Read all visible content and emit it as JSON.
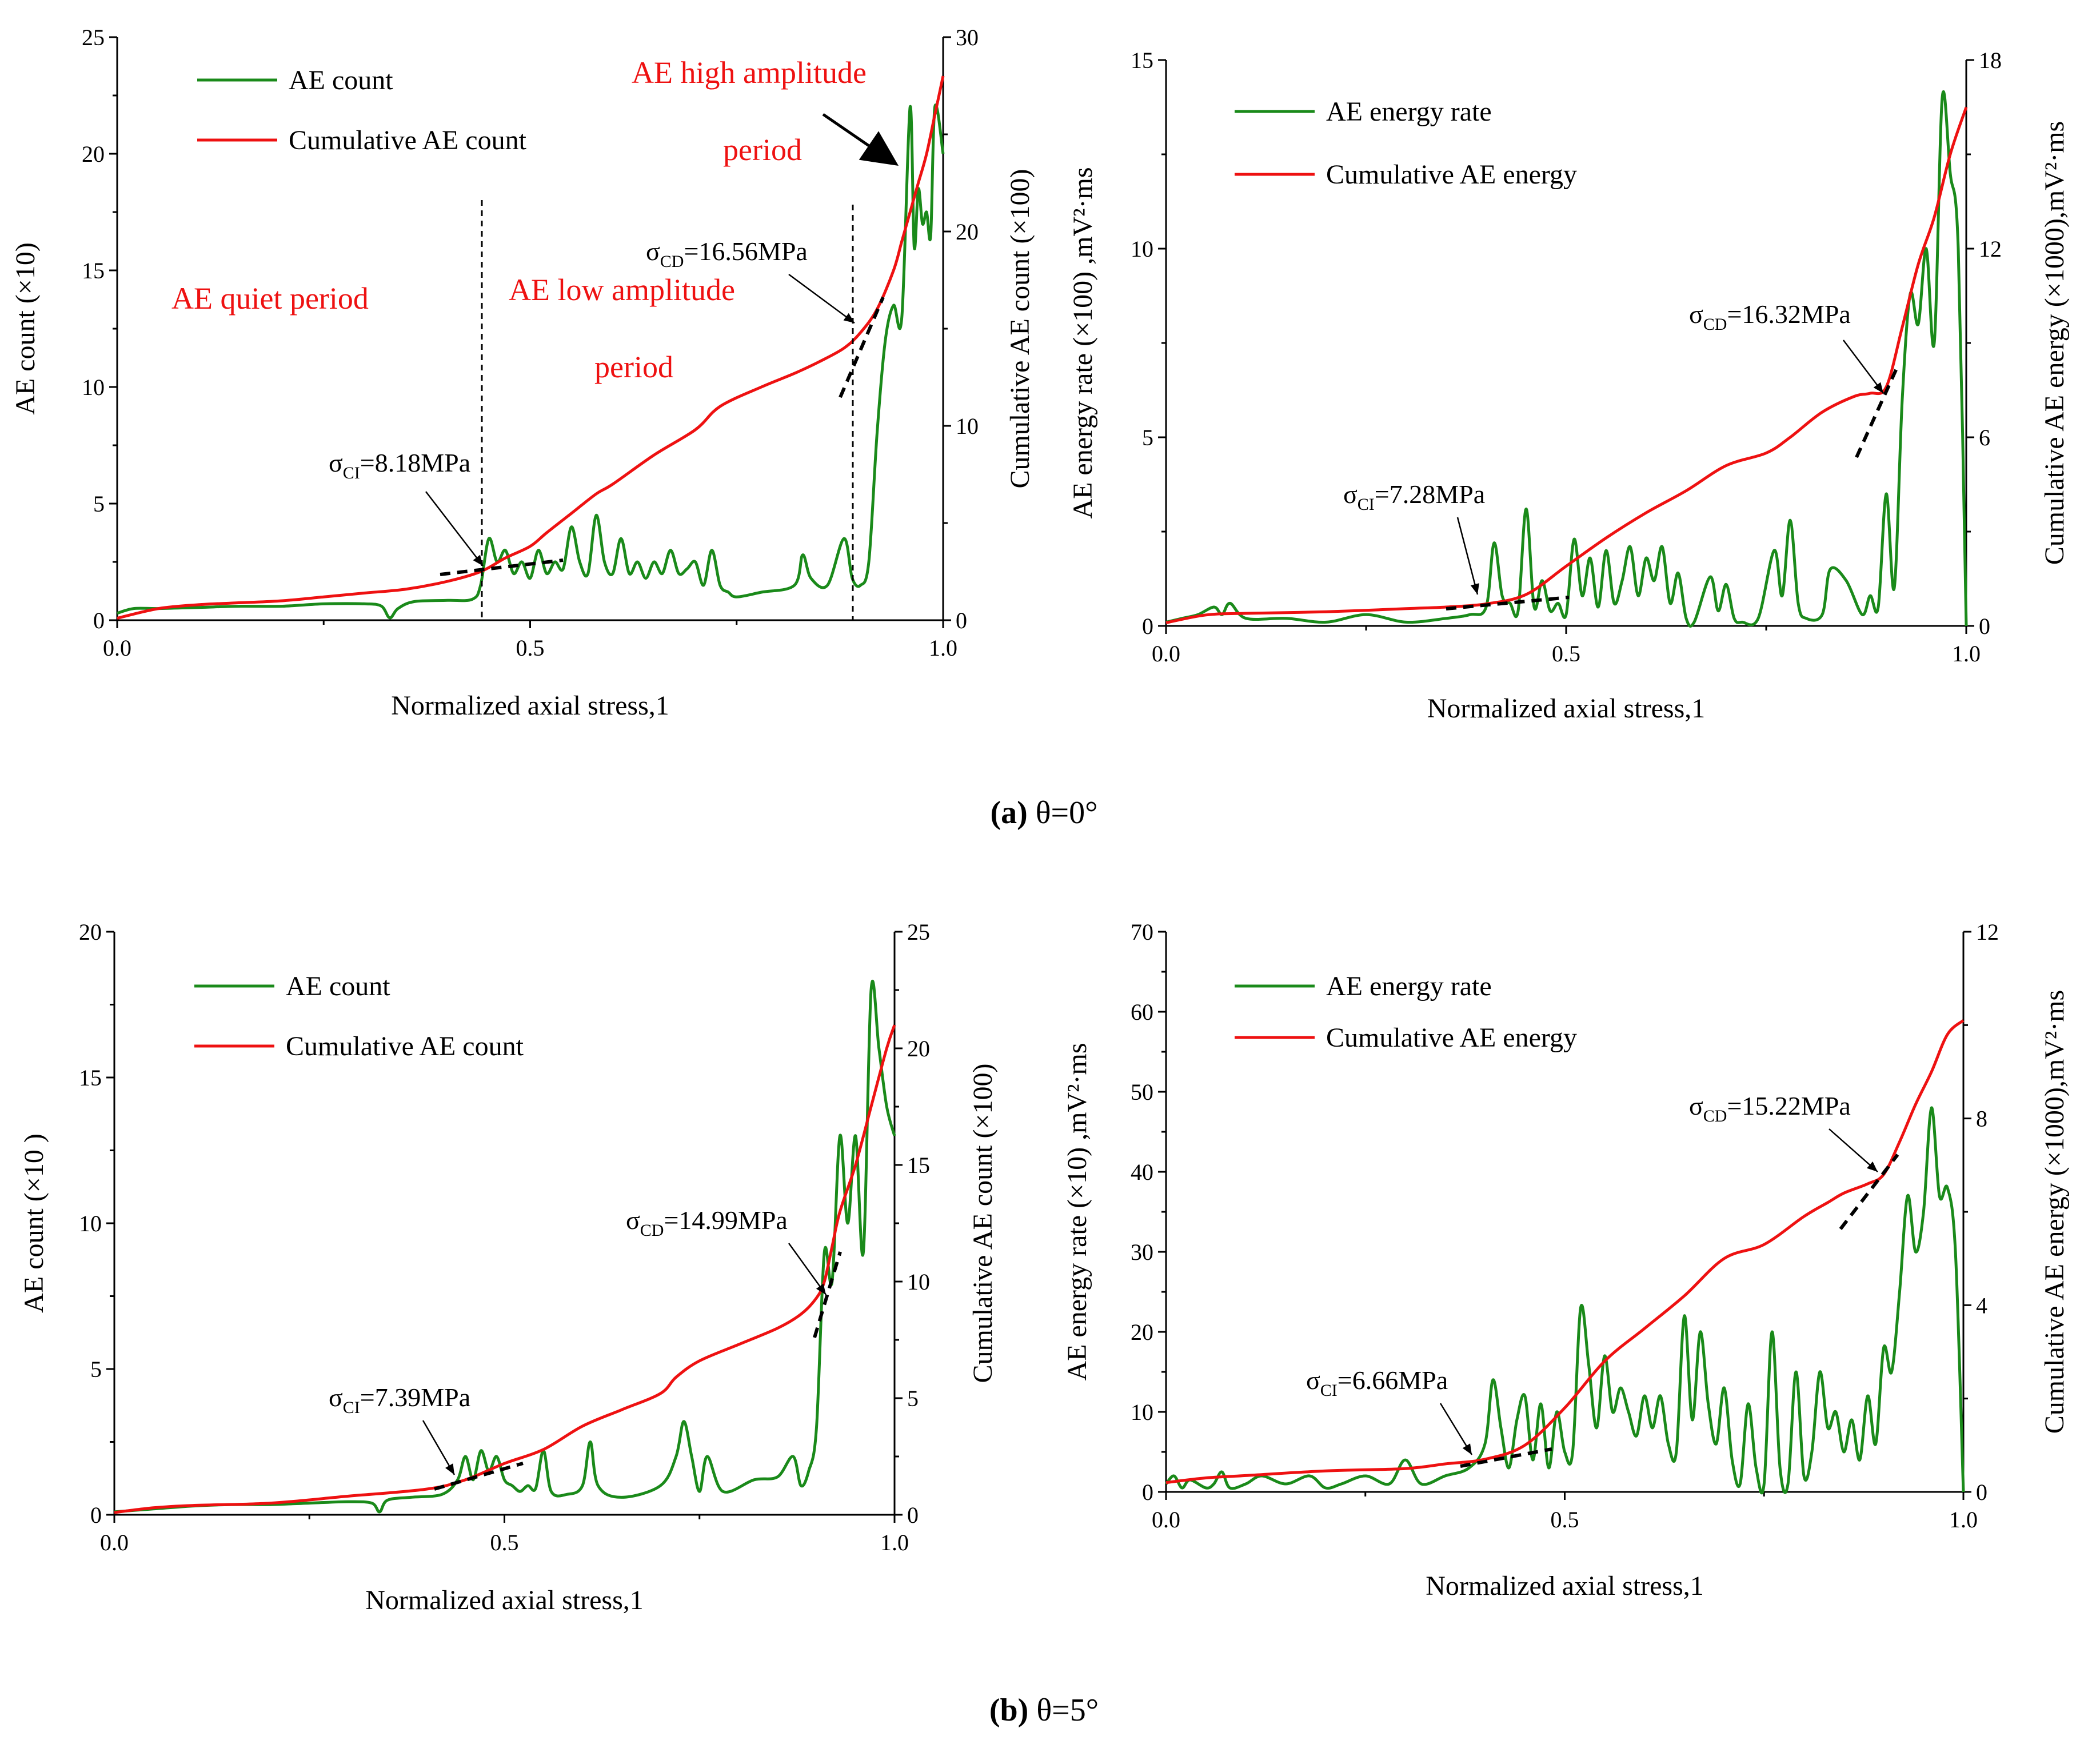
{
  "figure": {
    "caption_a": {
      "label": "(a)",
      "text": "θ=0°"
    },
    "caption_b": {
      "label": "(b)",
      "text": "θ=5°"
    }
  },
  "colors": {
    "green": "#1a8a1a",
    "red": "#ee1111",
    "black": "#000000"
  },
  "chart_data": [
    {
      "id": "a-count",
      "type": "line",
      "xlabel": "Normalized axial stress,1",
      "ylabel": "AE count (×10)",
      "y2label": "Cumulative AE count (×100)",
      "xlim": [
        0,
        1
      ],
      "ylim": [
        0,
        25
      ],
      "y2lim": [
        0,
        30
      ],
      "xticks": [
        0.0,
        0.5,
        1.0
      ],
      "xtick_labels": [
        "0.0",
        "0.5",
        "1.0"
      ],
      "yticks": [
        0,
        5,
        10,
        15,
        20,
        25
      ],
      "ytick_labels": [
        "0",
        "5",
        "10",
        "15",
        "20",
        "25"
      ],
      "y2ticks": [
        0,
        10,
        20,
        30
      ],
      "y2tick_labels": [
        "0",
        "10",
        "20",
        "30"
      ],
      "legend": [
        "AE count",
        "Cumulative AE count"
      ],
      "series_left": {
        "name": "AE count",
        "x": [
          0,
          0.02,
          0.05,
          0.1,
          0.15,
          0.2,
          0.25,
          0.3,
          0.32,
          0.33,
          0.34,
          0.36,
          0.4,
          0.43,
          0.44,
          0.45,
          0.46,
          0.47,
          0.48,
          0.49,
          0.5,
          0.51,
          0.52,
          0.53,
          0.54,
          0.55,
          0.56,
          0.57,
          0.58,
          0.59,
          0.6,
          0.61,
          0.62,
          0.63,
          0.64,
          0.65,
          0.66,
          0.67,
          0.68,
          0.69,
          0.7,
          0.71,
          0.72,
          0.73,
          0.74,
          0.75,
          0.78,
          0.82,
          0.83,
          0.84,
          0.86,
          0.88,
          0.89,
          0.9,
          0.91,
          0.92,
          0.93,
          0.94,
          0.95,
          0.96,
          0.965,
          0.97,
          0.975,
          0.98,
          0.985,
          0.99,
          1.0
        ],
        "y": [
          0.3,
          0.5,
          0.5,
          0.55,
          0.6,
          0.6,
          0.7,
          0.7,
          0.6,
          0.1,
          0.5,
          0.8,
          0.85,
          0.9,
          1.5,
          3.5,
          2.5,
          3.0,
          2.0,
          2.5,
          1.8,
          3.0,
          2.0,
          2.5,
          2.2,
          4.0,
          2.5,
          2.0,
          4.5,
          2.5,
          2.0,
          3.5,
          2.0,
          2.5,
          1.8,
          2.5,
          2.0,
          3.0,
          2.0,
          2.2,
          2.5,
          1.5,
          3.0,
          1.5,
          1.2,
          1.0,
          1.2,
          1.5,
          2.8,
          1.8,
          1.5,
          3.5,
          1.8,
          1.5,
          2.5,
          8.0,
          12.0,
          13.5,
          13.0,
          22.0,
          16.0,
          18.5,
          17.0,
          17.5,
          16.5,
          22.0,
          20.0
        ]
      },
      "series_right": {
        "name": "Cumulative AE count",
        "x": [
          0,
          0.05,
          0.1,
          0.15,
          0.2,
          0.25,
          0.3,
          0.35,
          0.4,
          0.44,
          0.47,
          0.5,
          0.52,
          0.55,
          0.58,
          0.6,
          0.65,
          0.7,
          0.73,
          0.78,
          0.82,
          0.85,
          0.88,
          0.9,
          0.92,
          0.94,
          0.95,
          0.96,
          0.97,
          0.98,
          0.99,
          1.0
        ],
        "y": [
          0.1,
          0.6,
          0.8,
          0.9,
          1.0,
          1.2,
          1.4,
          1.6,
          2.0,
          2.5,
          3.2,
          3.8,
          4.5,
          5.5,
          6.5,
          7.0,
          8.5,
          9.8,
          11.0,
          12.0,
          12.7,
          13.3,
          14.0,
          14.8,
          16.0,
          18.0,
          19.5,
          21.0,
          22.5,
          24.0,
          26.0,
          28.0
        ]
      },
      "annotations": [
        {
          "text": "AE quiet period"
        },
        {
          "text": "AE low amplitude"
        },
        {
          "text": "period"
        },
        {
          "text": "AE high amplitude"
        },
        {
          "text": "period"
        },
        {
          "sub": "CI",
          "value": "=8.18MPa"
        },
        {
          "sub": "CD",
          "value": "=16.56MPa"
        }
      ]
    },
    {
      "id": "a-energy",
      "type": "line",
      "xlabel": "Normalized axial stress,1",
      "ylabel": "AE energy rate (×100) ,mV²·ms",
      "y2label": "Cumulative AE energy (×1000),mV²·ms",
      "xlim": [
        0,
        1
      ],
      "ylim": [
        0,
        15
      ],
      "y2lim": [
        0,
        18
      ],
      "xticks": [
        0.0,
        0.5,
        1.0
      ],
      "xtick_labels": [
        "0.0",
        "0.5",
        "1.0"
      ],
      "yticks": [
        0,
        5,
        10,
        15
      ],
      "ytick_labels": [
        "0",
        "5",
        "10",
        "15"
      ],
      "y2ticks": [
        0,
        6,
        12,
        18
      ],
      "y2tick_labels": [
        "0",
        "6",
        "12",
        "18"
      ],
      "legend": [
        "AE energy rate",
        "Cumulative AE energy"
      ],
      "series_left": {
        "name": "AE energy rate",
        "x": [
          0,
          0.02,
          0.04,
          0.06,
          0.07,
          0.08,
          0.1,
          0.15,
          0.2,
          0.25,
          0.3,
          0.35,
          0.38,
          0.4,
          0.41,
          0.42,
          0.43,
          0.44,
          0.45,
          0.46,
          0.47,
          0.48,
          0.49,
          0.5,
          0.51,
          0.52,
          0.53,
          0.54,
          0.55,
          0.56,
          0.57,
          0.58,
          0.59,
          0.6,
          0.61,
          0.62,
          0.63,
          0.64,
          0.65,
          0.66,
          0.68,
          0.69,
          0.7,
          0.71,
          0.72,
          0.74,
          0.76,
          0.77,
          0.78,
          0.79,
          0.8,
          0.82,
          0.83,
          0.85,
          0.87,
          0.88,
          0.89,
          0.9,
          0.91,
          0.92,
          0.93,
          0.94,
          0.95,
          0.96,
          0.97,
          0.98,
          0.99,
          1.0
        ],
        "y": [
          0.1,
          0.2,
          0.3,
          0.5,
          0.3,
          0.6,
          0.2,
          0.2,
          0.1,
          0.3,
          0.1,
          0.2,
          0.3,
          0.5,
          2.2,
          0.8,
          0.6,
          0.4,
          3.1,
          0.5,
          1.2,
          0.4,
          0.6,
          0.3,
          2.3,
          0.8,
          1.8,
          0.5,
          2.0,
          0.6,
          1.2,
          2.1,
          0.8,
          1.8,
          1.2,
          2.1,
          0.6,
          1.4,
          0.2,
          0.1,
          1.3,
          0.4,
          1.1,
          0.2,
          0.1,
          0.2,
          2.0,
          0.8,
          2.8,
          0.6,
          0.2,
          0.3,
          1.5,
          1.2,
          0.3,
          0.8,
          0.5,
          3.5,
          1.0,
          6.0,
          8.8,
          8.0,
          10.0,
          7.5,
          14.0,
          12.0,
          10.0,
          0.0
        ]
      },
      "series_right": {
        "name": "Cumulative AE energy",
        "x": [
          0,
          0.05,
          0.1,
          0.2,
          0.3,
          0.35,
          0.4,
          0.45,
          0.5,
          0.55,
          0.6,
          0.65,
          0.7,
          0.75,
          0.78,
          0.82,
          0.86,
          0.88,
          0.9,
          0.92,
          0.94,
          0.96,
          0.98,
          1.0
        ],
        "y": [
          0.1,
          0.35,
          0.4,
          0.45,
          0.55,
          0.6,
          0.7,
          1.0,
          1.9,
          2.8,
          3.6,
          4.3,
          5.1,
          5.5,
          6.0,
          6.8,
          7.3,
          7.4,
          7.6,
          9.5,
          11.5,
          13.0,
          15.0,
          16.5
        ]
      },
      "annotations": [
        {
          "sub": "CI",
          "value": "=7.28MPa"
        },
        {
          "sub": "CD",
          "value": "=16.32MPa"
        }
      ]
    },
    {
      "id": "b-count",
      "type": "line",
      "xlabel": "Normalized axial stress,1",
      "ylabel": "AE count    (×10 )",
      "y2label": "Cumulative AE count (×100)",
      "xlim": [
        0,
        1
      ],
      "ylim": [
        0,
        20
      ],
      "y2lim": [
        0,
        25
      ],
      "xticks": [
        0.0,
        0.5,
        1.0
      ],
      "xtick_labels": [
        "0.0",
        "0.5",
        "1.0"
      ],
      "yticks": [
        0,
        5,
        10,
        15,
        20
      ],
      "ytick_labels": [
        "0",
        "5",
        "10",
        "15",
        "20"
      ],
      "y2ticks": [
        0,
        5,
        10,
        15,
        20,
        25
      ],
      "y2tick_labels": [
        "0",
        "5",
        "10",
        "15",
        "20",
        "25"
      ],
      "legend": [
        "AE count",
        "Cumulative AE count"
      ],
      "series_left": {
        "name": "AE count",
        "x": [
          0,
          0.05,
          0.1,
          0.15,
          0.2,
          0.25,
          0.3,
          0.33,
          0.34,
          0.35,
          0.38,
          0.42,
          0.44,
          0.45,
          0.46,
          0.47,
          0.48,
          0.49,
          0.5,
          0.51,
          0.52,
          0.53,
          0.54,
          0.55,
          0.56,
          0.58,
          0.6,
          0.61,
          0.62,
          0.65,
          0.7,
          0.72,
          0.73,
          0.74,
          0.75,
          0.76,
          0.78,
          0.82,
          0.85,
          0.87,
          0.88,
          0.89,
          0.9,
          0.91,
          0.92,
          0.93,
          0.94,
          0.95,
          0.96,
          0.97,
          0.98,
          0.99,
          1.0
        ],
        "y": [
          0.1,
          0.2,
          0.3,
          0.35,
          0.35,
          0.4,
          0.45,
          0.4,
          0.1,
          0.5,
          0.6,
          0.7,
          1.2,
          2.0,
          1.2,
          2.2,
          1.5,
          2.0,
          1.2,
          1.0,
          0.8,
          1.0,
          0.9,
          2.2,
          0.8,
          0.7,
          1.0,
          2.5,
          1.0,
          0.6,
          1.0,
          2.0,
          3.2,
          2.0,
          0.8,
          2.0,
          0.8,
          1.2,
          1.3,
          2.0,
          1.0,
          1.5,
          3.0,
          9.0,
          8.0,
          13.0,
          10.0,
          13.0,
          9.0,
          18.0,
          16.0,
          14.0,
          13.0
        ]
      },
      "series_right": {
        "name": "Cumulative AE count",
        "x": [
          0,
          0.05,
          0.1,
          0.2,
          0.3,
          0.4,
          0.45,
          0.5,
          0.55,
          0.6,
          0.65,
          0.7,
          0.72,
          0.75,
          0.8,
          0.85,
          0.88,
          0.9,
          0.91,
          0.92,
          0.93,
          0.95,
          0.97,
          0.99,
          1.0
        ],
        "y": [
          0.1,
          0.3,
          0.4,
          0.5,
          0.8,
          1.1,
          1.5,
          2.2,
          2.8,
          3.8,
          4.5,
          5.2,
          5.9,
          6.6,
          7.3,
          8.0,
          8.6,
          9.3,
          10.0,
          11.5,
          13.0,
          15.0,
          17.5,
          20.0,
          21.0
        ]
      },
      "annotations": [
        {
          "sub": "CI",
          "value": "=7.39MPa"
        },
        {
          "sub": "CD",
          "value": "=14.99MPa"
        }
      ]
    },
    {
      "id": "b-energy",
      "type": "line",
      "xlabel": "Normalized axial stress,1",
      "ylabel": "AE energy rate (×10) ,mV²·ms",
      "y2label": "Cumulative AE energy (×1000),mV²·ms",
      "xlim": [
        0,
        1
      ],
      "ylim": [
        0,
        70
      ],
      "y2lim": [
        0,
        12
      ],
      "xticks": [
        0.0,
        0.5,
        1.0
      ],
      "xtick_labels": [
        "0.0",
        "0.5",
        "1.0"
      ],
      "yticks": [
        0,
        10,
        20,
        30,
        40,
        50,
        60,
        70
      ],
      "ytick_labels": [
        "0",
        "10",
        "20",
        "30",
        "40",
        "50",
        "60",
        "70"
      ],
      "y2ticks": [
        0,
        4,
        8,
        12
      ],
      "y2tick_labels": [
        "0",
        "4",
        "8",
        "12"
      ],
      "legend": [
        "AE energy rate",
        "Cumulative AE energy"
      ],
      "series_left": {
        "name": "AE energy rate",
        "x": [
          0,
          0.01,
          0.02,
          0.03,
          0.05,
          0.06,
          0.07,
          0.08,
          0.1,
          0.12,
          0.15,
          0.18,
          0.2,
          0.22,
          0.25,
          0.28,
          0.3,
          0.32,
          0.35,
          0.38,
          0.4,
          0.41,
          0.42,
          0.43,
          0.44,
          0.45,
          0.46,
          0.47,
          0.48,
          0.49,
          0.5,
          0.51,
          0.52,
          0.53,
          0.54,
          0.55,
          0.56,
          0.57,
          0.58,
          0.59,
          0.6,
          0.61,
          0.62,
          0.63,
          0.64,
          0.65,
          0.66,
          0.67,
          0.68,
          0.69,
          0.7,
          0.71,
          0.72,
          0.73,
          0.74,
          0.75,
          0.76,
          0.77,
          0.78,
          0.79,
          0.8,
          0.81,
          0.82,
          0.83,
          0.84,
          0.85,
          0.86,
          0.87,
          0.88,
          0.89,
          0.9,
          0.91,
          0.92,
          0.93,
          0.94,
          0.95,
          0.96,
          0.97,
          0.98,
          0.99,
          1.0
        ],
        "y": [
          1.0,
          2.0,
          0.5,
          1.5,
          0.5,
          1.0,
          2.5,
          0.5,
          1.0,
          2.0,
          1.0,
          2.0,
          0.5,
          1.0,
          2.0,
          1.0,
          4.0,
          1.0,
          2.0,
          3.0,
          6.0,
          14.0,
          8.0,
          3.0,
          9.0,
          12.0,
          4.0,
          11.0,
          3.0,
          10.0,
          5.0,
          5.0,
          23.0,
          16.0,
          8.0,
          17.0,
          10.0,
          13.0,
          10.0,
          7.0,
          12.0,
          8.0,
          12.0,
          6.0,
          5.0,
          22.0,
          9.0,
          20.0,
          11.0,
          6.0,
          13.0,
          4.0,
          1.0,
          11.0,
          3.0,
          1.0,
          20.0,
          3.0,
          1.0,
          15.0,
          2.0,
          5.0,
          15.0,
          8.0,
          10.0,
          5.0,
          9.0,
          4.0,
          12.0,
          6.0,
          18.0,
          15.0,
          25.0,
          37.0,
          30.0,
          35.0,
          48.0,
          37.0,
          38.0,
          30.0,
          0.0
        ]
      },
      "series_right": {
        "name": "Cumulative AE energy",
        "x": [
          0,
          0.05,
          0.1,
          0.2,
          0.3,
          0.35,
          0.4,
          0.45,
          0.5,
          0.55,
          0.6,
          0.65,
          0.7,
          0.75,
          0.8,
          0.83,
          0.85,
          0.88,
          0.9,
          0.92,
          0.94,
          0.96,
          0.98,
          1.0
        ],
        "y": [
          0.2,
          0.3,
          0.35,
          0.45,
          0.5,
          0.6,
          0.7,
          1.0,
          1.8,
          2.8,
          3.5,
          4.2,
          5.0,
          5.3,
          5.9,
          6.2,
          6.4,
          6.6,
          6.8,
          7.5,
          8.3,
          9.0,
          9.8,
          10.1
        ]
      },
      "annotations": [
        {
          "sub": "CI",
          "value": "=6.66MPa"
        },
        {
          "sub": "CD",
          "value": "=15.22MPa"
        }
      ]
    }
  ]
}
